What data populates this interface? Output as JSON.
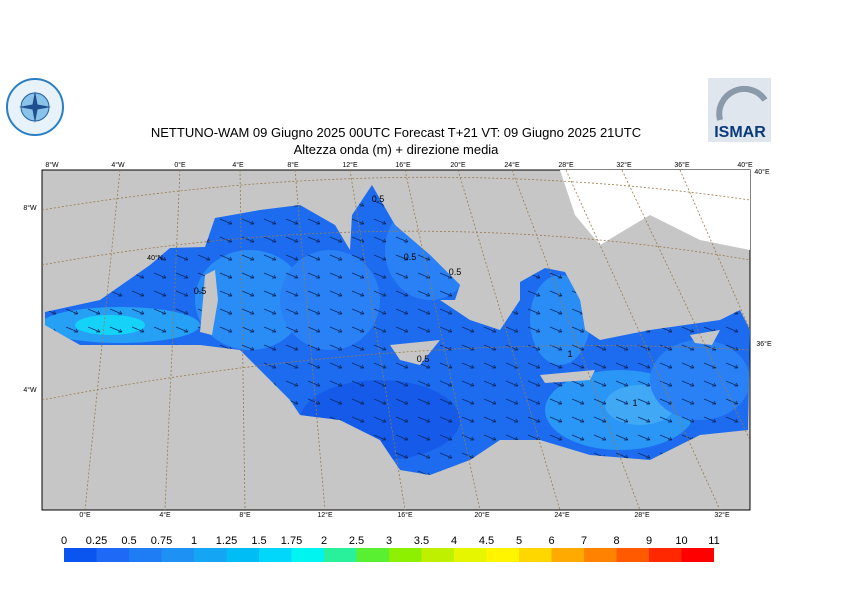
{
  "header": {
    "title": "NETTUNO-WAM  09   Giugno  2025 00UTC Forecast T+21 VT: 09   Giugno  2025 21UTC",
    "subtitle": "Altezza onda (m) + direzione media",
    "logo_right": "ISMAR"
  },
  "map": {
    "top_labels": [
      "8°W",
      "4°W",
      "0°E",
      "4°E",
      "8°E",
      "12°E",
      "16°E",
      "20°E",
      "24°E",
      "28°E",
      "32°E",
      "36°E",
      "40°E"
    ],
    "bottom_labels": [
      "0°E",
      "4°E",
      "8°E",
      "12°E",
      "16°E",
      "20°E",
      "24°E",
      "28°E",
      "32°E"
    ],
    "left_labels": [
      "8°W",
      "40°N",
      "4°W"
    ],
    "right_labels": [
      "40°E",
      "36°E"
    ],
    "contour_labels": [
      0.5,
      0.5,
      0.5,
      0.5,
      1,
      1,
      0.5
    ]
  },
  "legend": {
    "ticks": [
      0,
      0.25,
      0.5,
      0.75,
      1,
      1.25,
      1.5,
      1.75,
      2,
      2.5,
      3,
      3.5,
      4,
      4.5,
      5,
      6,
      7,
      8,
      9,
      10,
      11
    ],
    "colors": [
      "#0a55f0",
      "#1e69f5",
      "#1e7df5",
      "#1e91f5",
      "#14a5f5",
      "#00bef5",
      "#00d7fa",
      "#00f5f0",
      "#28f09b",
      "#5af032",
      "#8cf000",
      "#bef000",
      "#e6f500",
      "#fff500",
      "#ffd700",
      "#ffaa00",
      "#ff8200",
      "#ff5a00",
      "#ff2800",
      "#ff0000",
      "#ff1eb4"
    ]
  }
}
